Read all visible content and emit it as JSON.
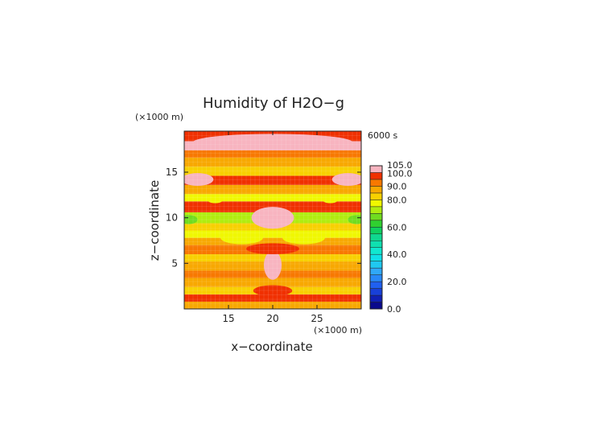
{
  "chart_data": {
    "type": "heatmap",
    "title": "Humidity of H2O−g",
    "xlabel": "x−coordinate",
    "ylabel": "z−coordinate",
    "x_unit": "(×1000 m)",
    "y_unit": "(×1000 m)",
    "time_label": "6000 s",
    "xlim": [
      10,
      30
    ],
    "ylim": [
      0,
      19.5
    ],
    "x_ticks": [
      15,
      20,
      25
    ],
    "y_ticks": [
      5,
      10,
      15
    ],
    "colorbar": {
      "range": [
        0,
        105
      ],
      "tick_values": [
        0,
        20,
        40,
        60,
        80,
        90,
        100,
        105
      ],
      "tick_labels": [
        "0.0",
        "20.0",
        "40.0",
        "60.0",
        "80.0",
        "90.0",
        "100.0",
        "105.0"
      ],
      "levels": [
        {
          "min": 0,
          "max": 5,
          "color": "#0a0a8c"
        },
        {
          "min": 5,
          "max": 10,
          "color": "#1020b4"
        },
        {
          "min": 10,
          "max": 15,
          "color": "#1840d8"
        },
        {
          "min": 15,
          "max": 20,
          "color": "#2060f0"
        },
        {
          "min": 20,
          "max": 25,
          "color": "#2888f8"
        },
        {
          "min": 25,
          "max": 30,
          "color": "#30a8f8"
        },
        {
          "min": 30,
          "max": 35,
          "color": "#20c8f0"
        },
        {
          "min": 35,
          "max": 40,
          "color": "#10e0e8"
        },
        {
          "min": 40,
          "max": 45,
          "color": "#10e8d0"
        },
        {
          "min": 45,
          "max": 50,
          "color": "#10e0b0"
        },
        {
          "min": 50,
          "max": 55,
          "color": "#10d890"
        },
        {
          "min": 55,
          "max": 60,
          "color": "#10d060"
        },
        {
          "min": 60,
          "max": 65,
          "color": "#30d030"
        },
        {
          "min": 65,
          "max": 70,
          "color": "#70dc20"
        },
        {
          "min": 70,
          "max": 75,
          "color": "#b0ec10"
        },
        {
          "min": 75,
          "max": 80,
          "color": "#f0f800"
        },
        {
          "min": 80,
          "max": 85,
          "color": "#f8d000"
        },
        {
          "min": 85,
          "max": 90,
          "color": "#f8a800"
        },
        {
          "min": 90,
          "max": 95,
          "color": "#f87800"
        },
        {
          "min": 95,
          "max": 100,
          "color": "#f03000"
        },
        {
          "min": 100,
          "max": 105,
          "color": "#f8b4c0"
        }
      ]
    },
    "bands": [
      {
        "z0": 0.0,
        "z1": 0.8,
        "value": 88
      },
      {
        "z0": 0.8,
        "z1": 1.6,
        "value": 97
      },
      {
        "z0": 1.6,
        "z1": 2.4,
        "value": 84
      },
      {
        "z0": 2.4,
        "z1": 3.4,
        "value": 88
      },
      {
        "z0": 3.4,
        "z1": 4.2,
        "value": 92
      },
      {
        "z0": 4.2,
        "z1": 5.2,
        "value": 86
      },
      {
        "z0": 5.2,
        "z1": 6.0,
        "value": 82
      },
      {
        "z0": 6.0,
        "z1": 7.0,
        "value": 92
      },
      {
        "z0": 7.0,
        "z1": 7.8,
        "value": 87
      },
      {
        "z0": 7.8,
        "z1": 8.6,
        "value": 77
      },
      {
        "z0": 8.6,
        "z1": 9.4,
        "value": 84
      },
      {
        "z0": 9.4,
        "z1": 10.6,
        "value": 72
      },
      {
        "z0": 10.6,
        "z1": 11.8,
        "value": 97
      },
      {
        "z0": 11.8,
        "z1": 12.6,
        "value": 77
      },
      {
        "z0": 12.6,
        "z1": 13.6,
        "value": 88
      },
      {
        "z0": 13.6,
        "z1": 14.6,
        "value": 97
      },
      {
        "z0": 14.6,
        "z1": 15.6,
        "value": 84
      },
      {
        "z0": 15.6,
        "z1": 16.6,
        "value": 88
      },
      {
        "z0": 16.6,
        "z1": 17.4,
        "value": 92
      },
      {
        "z0": 17.4,
        "z1": 18.4,
        "value": 102
      },
      {
        "z0": 18.4,
        "z1": 19.5,
        "value": 97
      }
    ],
    "blobs": [
      {
        "shape": "ellipse",
        "cx": 20,
        "cz": 10.0,
        "rx": 2.4,
        "rz": 1.2,
        "value": 102
      },
      {
        "shape": "ellipse",
        "cx": 20,
        "cz": 4.8,
        "rx": 1.0,
        "rz": 1.6,
        "value": 102
      },
      {
        "shape": "ellipse",
        "cx": 20,
        "cz": 18.3,
        "rx": 9.0,
        "rz": 0.9,
        "value": 102
      },
      {
        "shape": "ellipse",
        "cx": 11.5,
        "cz": 14.2,
        "rx": 1.8,
        "rz": 0.7,
        "value": 102
      },
      {
        "shape": "ellipse",
        "cx": 28.5,
        "cz": 14.2,
        "rx": 1.8,
        "rz": 0.7,
        "value": 102
      },
      {
        "shape": "ellipse",
        "cx": 13.5,
        "cz": 12.0,
        "rx": 0.9,
        "rz": 0.4,
        "value": 77
      },
      {
        "shape": "ellipse",
        "cx": 26.5,
        "cz": 12.0,
        "rx": 0.9,
        "rz": 0.4,
        "value": 77
      },
      {
        "shape": "ellipse",
        "cx": 10.5,
        "cz": 9.8,
        "rx": 1.0,
        "rz": 0.5,
        "value": 67
      },
      {
        "shape": "ellipse",
        "cx": 29.5,
        "cz": 9.8,
        "rx": 1.0,
        "rz": 0.5,
        "value": 67
      },
      {
        "shape": "ellipse",
        "cx": 16.5,
        "cz": 7.8,
        "rx": 2.4,
        "rz": 0.7,
        "value": 77
      },
      {
        "shape": "ellipse",
        "cx": 23.5,
        "cz": 7.8,
        "rx": 2.4,
        "rz": 0.7,
        "value": 77
      },
      {
        "shape": "ellipse",
        "cx": 20,
        "cz": 6.6,
        "rx": 3.0,
        "rz": 0.6,
        "value": 97
      },
      {
        "shape": "ellipse",
        "cx": 20,
        "cz": 2.0,
        "rx": 2.2,
        "rz": 0.6,
        "value": 97
      }
    ]
  }
}
